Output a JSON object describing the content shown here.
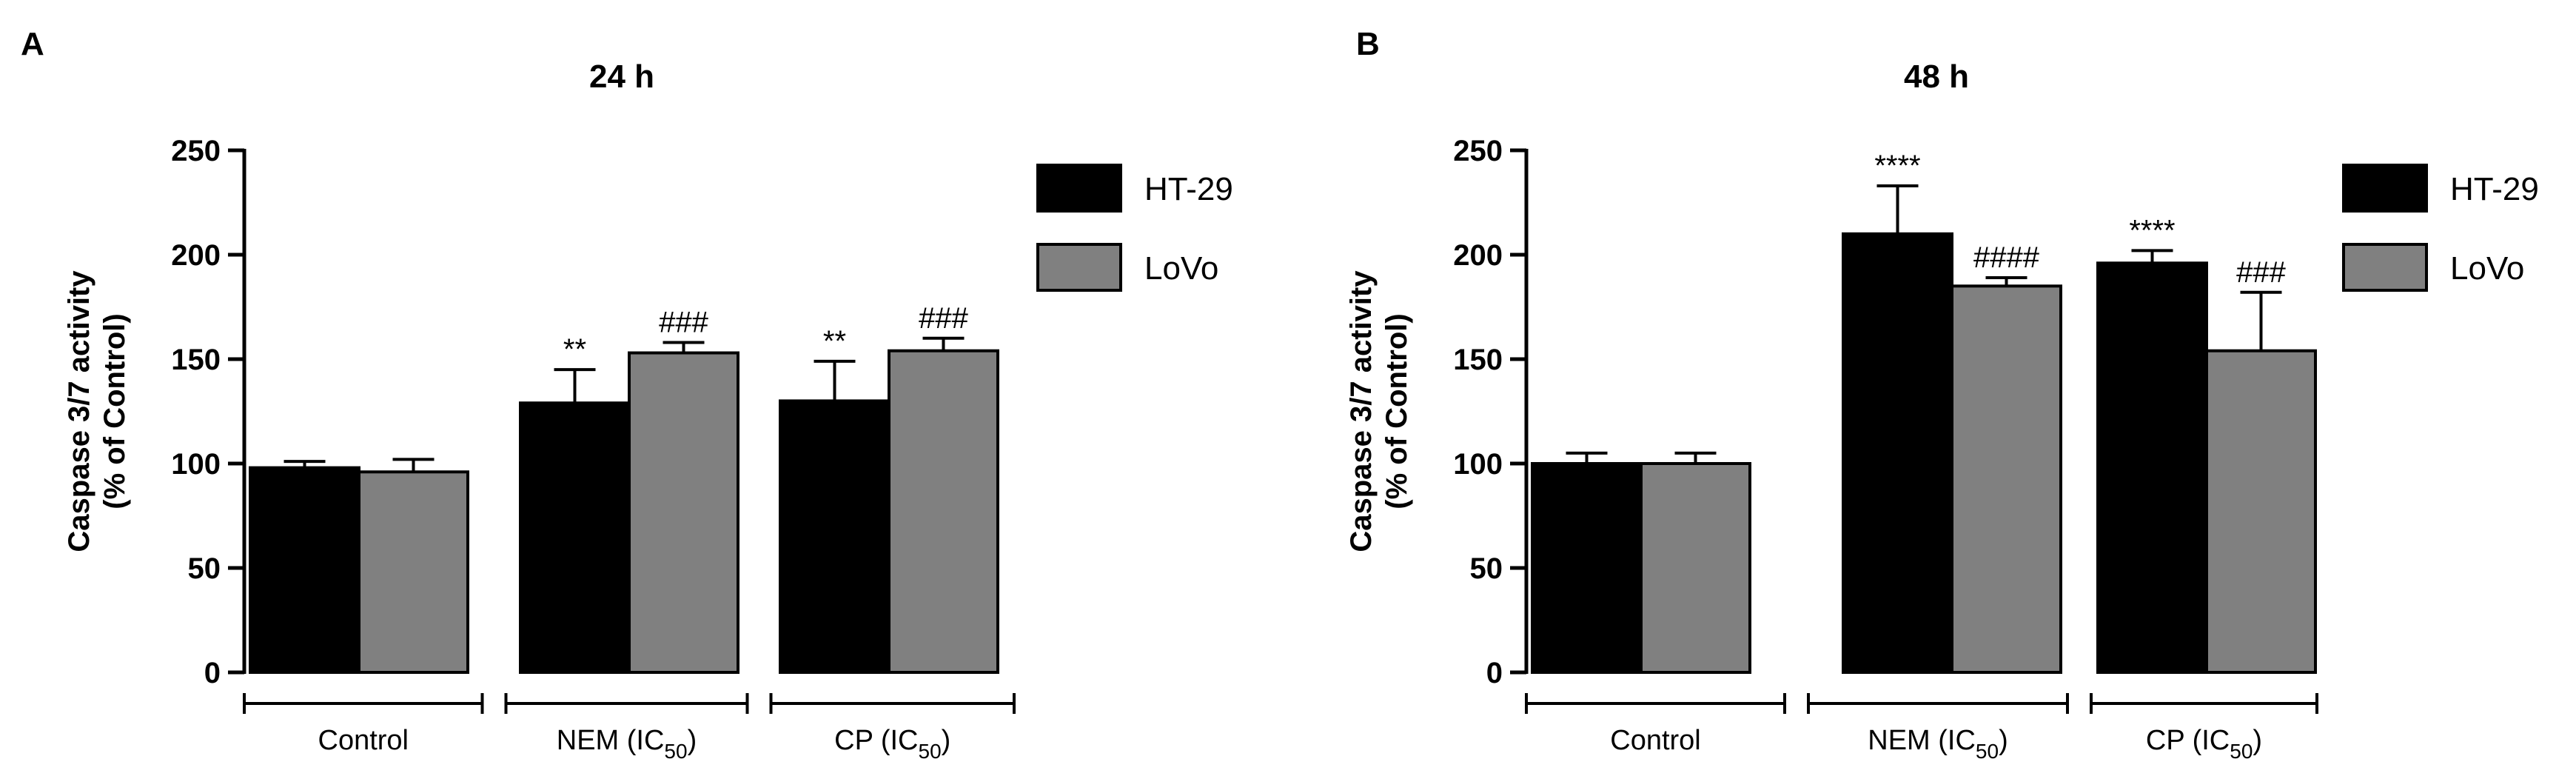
{
  "colors": {
    "ht29": "#000000",
    "lovo": "#808080"
  },
  "chart_data": [
    {
      "type": "bar",
      "panel": "A",
      "title": "24 h",
      "ylabel_line1": "Caspase 3/7 activity",
      "ylabel_line2": "(% of Control)",
      "ylim": [
        0,
        250
      ],
      "yticks": [
        0,
        50,
        100,
        150,
        200,
        250
      ],
      "categories": [
        {
          "main": "Control",
          "sub": "",
          "tail": ""
        },
        {
          "main": "NEM (IC",
          "sub": "50",
          "tail": ")"
        },
        {
          "main": "CP (IC",
          "sub": "50",
          "tail": ")"
        }
      ],
      "series": [
        {
          "name": "HT-29",
          "values": [
            98,
            129,
            130
          ],
          "errors": [
            3,
            16,
            19
          ],
          "annotations": [
            "",
            "**",
            "**"
          ]
        },
        {
          "name": "LoVo",
          "values": [
            96,
            153,
            154
          ],
          "errors": [
            6,
            5,
            6
          ],
          "annotations": [
            "",
            "###",
            "###"
          ]
        }
      ],
      "legend": "top-right"
    },
    {
      "type": "bar",
      "panel": "B",
      "title": "48 h",
      "ylabel_line1": "Caspase 3/7 activity",
      "ylabel_line2": "(% of Control)",
      "ylim": [
        0,
        250
      ],
      "yticks": [
        0,
        50,
        100,
        150,
        200,
        250
      ],
      "categories": [
        {
          "main": "Control",
          "sub": "",
          "tail": ""
        },
        {
          "main": "NEM (IC",
          "sub": "50",
          "tail": ")"
        },
        {
          "main": "CP (IC",
          "sub": "50",
          "tail": ")"
        }
      ],
      "series": [
        {
          "name": "HT-29",
          "values": [
            100,
            210,
            196
          ],
          "errors": [
            5,
            23,
            6
          ],
          "annotations": [
            "",
            "****",
            "****"
          ]
        },
        {
          "name": "LoVo",
          "values": [
            100,
            185,
            154
          ],
          "errors": [
            5,
            4,
            28
          ],
          "annotations": [
            "",
            "####",
            "###"
          ]
        }
      ],
      "legend": "top-right"
    }
  ]
}
